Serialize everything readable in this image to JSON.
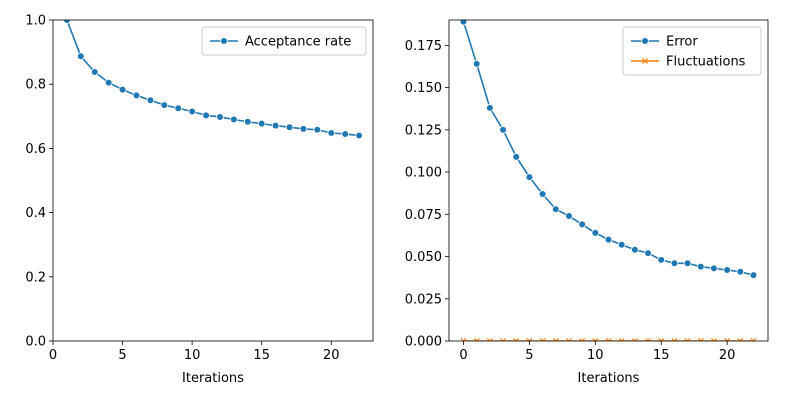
{
  "chart_data": [
    {
      "type": "line",
      "xlabel": "Iterations",
      "ylabel": "",
      "xlim": [
        0,
        23
      ],
      "ylim": [
        0,
        1.0
      ],
      "xticks": [
        0,
        5,
        10,
        15,
        20
      ],
      "xtick_labels": [
        "0",
        "5",
        "10",
        "15",
        "20"
      ],
      "yticks": [
        0,
        0.2,
        0.4,
        0.6,
        0.8,
        1.0
      ],
      "ytick_labels": [
        "0.0",
        "0.2",
        "0.4",
        "0.6",
        "0.8",
        "1.0"
      ],
      "grid": false,
      "legend_position": "top-right",
      "x": [
        1,
        2,
        3,
        4,
        5,
        6,
        7,
        8,
        9,
        10,
        11,
        12,
        13,
        14,
        15,
        16,
        17,
        18,
        19,
        20,
        21,
        22
      ],
      "series": [
        {
          "name": "Acceptance rate",
          "color": "#1f77b4",
          "marker": "circle",
          "values": [
            1.0,
            0.887,
            0.838,
            0.805,
            0.783,
            0.765,
            0.75,
            0.735,
            0.725,
            0.715,
            0.703,
            0.698,
            0.69,
            0.683,
            0.677,
            0.671,
            0.666,
            0.661,
            0.658,
            0.648,
            0.645,
            0.64
          ]
        }
      ]
    },
    {
      "type": "line",
      "xlabel": "Iterations",
      "ylabel": "",
      "xlim": [
        -1.1,
        23.1
      ],
      "ylim": [
        0,
        0.19
      ],
      "xticks": [
        0,
        5,
        10,
        15,
        20
      ],
      "xtick_labels": [
        "0",
        "5",
        "10",
        "15",
        "20"
      ],
      "yticks": [
        0,
        0.025,
        0.05,
        0.075,
        0.1,
        0.125,
        0.15,
        0.175
      ],
      "ytick_labels": [
        "0.000",
        "0.025",
        "0.050",
        "0.075",
        "0.100",
        "0.125",
        "0.150",
        "0.175"
      ],
      "grid": false,
      "legend_position": "top-right",
      "x": [
        0,
        1,
        2,
        3,
        4,
        5,
        6,
        7,
        8,
        9,
        10,
        11,
        12,
        13,
        14,
        15,
        16,
        17,
        18,
        19,
        20,
        21,
        22
      ],
      "series": [
        {
          "name": "Error",
          "color": "#1f77b4",
          "marker": "circle",
          "values": [
            0.189,
            0.164,
            0.138,
            0.125,
            0.109,
            0.097,
            0.087,
            0.078,
            0.074,
            0.069,
            0.064,
            0.06,
            0.057,
            0.054,
            0.052,
            0.048,
            0.046,
            0.046,
            0.044,
            0.043,
            0.042,
            0.041,
            0.039
          ]
        },
        {
          "name": "Fluctuations",
          "color": "#ff7f0e",
          "marker": "x",
          "values": [
            0,
            0,
            0,
            0,
            0,
            0,
            0,
            0,
            0,
            0,
            0,
            0,
            0,
            0,
            0,
            0,
            0,
            0,
            0,
            0,
            0,
            0,
            0
          ]
        }
      ]
    }
  ]
}
